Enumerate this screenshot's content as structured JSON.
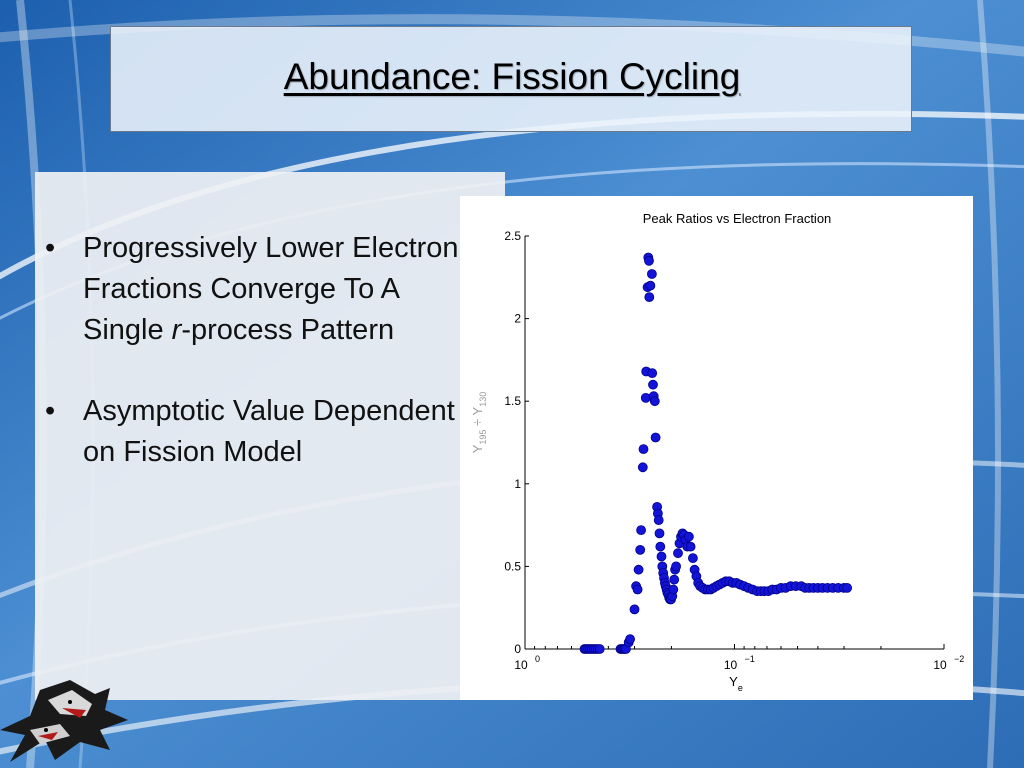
{
  "slide": {
    "title": "Abundance:  Fission Cycling",
    "bullets": [
      {
        "parts": [
          "Progressively Lower Electron Fractions Converge To A Single ",
          "r",
          "-process Pattern"
        ]
      },
      {
        "parts": [
          "Asymptotic Value Dependent on Fission Model",
          "",
          ""
        ]
      }
    ],
    "bullet_symbol": "•"
  },
  "colors": {
    "marker_fill": "#1414d8",
    "marker_stroke": "#00008a",
    "axis": "#000000",
    "ylabel_color": "#9a9a9a"
  },
  "icons": {
    "logo": "wolf-mascot-icon"
  },
  "chart_data": {
    "type": "scatter",
    "title": "Peak Ratios vs Electron Fraction",
    "xlabel_main": "Y",
    "xlabel_sub": "e",
    "ylabel_parts": [
      "Y",
      "195",
      " ÷ Y",
      "130"
    ],
    "xscale": "log",
    "xaxis_reversed": true,
    "xlim": [
      1,
      0.01
    ],
    "ylim": [
      0,
      2.5
    ],
    "yticks": [
      0,
      0.5,
      1,
      1.5,
      2,
      2.5
    ],
    "ytick_labels": [
      "0",
      "0.5",
      "1",
      "1.5",
      "2",
      "2.5"
    ],
    "xticks": [
      1,
      0.1,
      0.01
    ],
    "xtick_base": "10",
    "xtick_exps": [
      "0",
      "−1",
      "−2"
    ],
    "grid": false,
    "legend": "none",
    "points": [
      {
        "x": 0.52,
        "y": 0.0
      },
      {
        "x": 0.51,
        "y": 0.0
      },
      {
        "x": 0.5,
        "y": 0.0
      },
      {
        "x": 0.49,
        "y": 0.0
      },
      {
        "x": 0.48,
        "y": 0.0
      },
      {
        "x": 0.47,
        "y": 0.0
      },
      {
        "x": 0.46,
        "y": 0.0
      },
      {
        "x": 0.45,
        "y": 0.0
      },
      {
        "x": 0.44,
        "y": 0.0
      },
      {
        "x": 0.35,
        "y": 0.0
      },
      {
        "x": 0.345,
        "y": 0.0
      },
      {
        "x": 0.34,
        "y": 0.0
      },
      {
        "x": 0.335,
        "y": 0.0
      },
      {
        "x": 0.33,
        "y": 0.0
      },
      {
        "x": 0.32,
        "y": 0.04
      },
      {
        "x": 0.315,
        "y": 0.06
      },
      {
        "x": 0.3,
        "y": 0.24
      },
      {
        "x": 0.295,
        "y": 0.38
      },
      {
        "x": 0.29,
        "y": 0.36
      },
      {
        "x": 0.287,
        "y": 0.48
      },
      {
        "x": 0.282,
        "y": 0.6
      },
      {
        "x": 0.279,
        "y": 0.72
      },
      {
        "x": 0.274,
        "y": 1.1
      },
      {
        "x": 0.272,
        "y": 1.21
      },
      {
        "x": 0.265,
        "y": 1.52
      },
      {
        "x": 0.264,
        "y": 1.68
      },
      {
        "x": 0.26,
        "y": 2.19
      },
      {
        "x": 0.258,
        "y": 2.37
      },
      {
        "x": 0.256,
        "y": 2.35
      },
      {
        "x": 0.255,
        "y": 2.13
      },
      {
        "x": 0.252,
        "y": 2.2
      },
      {
        "x": 0.248,
        "y": 2.27
      },
      {
        "x": 0.247,
        "y": 1.67
      },
      {
        "x": 0.245,
        "y": 1.6
      },
      {
        "x": 0.243,
        "y": 1.53
      },
      {
        "x": 0.24,
        "y": 1.5
      },
      {
        "x": 0.238,
        "y": 1.28
      },
      {
        "x": 0.234,
        "y": 0.86
      },
      {
        "x": 0.232,
        "y": 0.82
      },
      {
        "x": 0.23,
        "y": 0.78
      },
      {
        "x": 0.228,
        "y": 0.7
      },
      {
        "x": 0.226,
        "y": 0.62
      },
      {
        "x": 0.223,
        "y": 0.56
      },
      {
        "x": 0.221,
        "y": 0.5
      },
      {
        "x": 0.219,
        "y": 0.46
      },
      {
        "x": 0.217,
        "y": 0.43
      },
      {
        "x": 0.215,
        "y": 0.4
      },
      {
        "x": 0.213,
        "y": 0.38
      },
      {
        "x": 0.211,
        "y": 0.36
      },
      {
        "x": 0.209,
        "y": 0.34
      },
      {
        "x": 0.207,
        "y": 0.33
      },
      {
        "x": 0.205,
        "y": 0.31
      },
      {
        "x": 0.203,
        "y": 0.3
      },
      {
        "x": 0.201,
        "y": 0.3
      },
      {
        "x": 0.198,
        "y": 0.32
      },
      {
        "x": 0.196,
        "y": 0.36
      },
      {
        "x": 0.194,
        "y": 0.42
      },
      {
        "x": 0.192,
        "y": 0.48
      },
      {
        "x": 0.19,
        "y": 0.5
      },
      {
        "x": 0.186,
        "y": 0.58
      },
      {
        "x": 0.183,
        "y": 0.64
      },
      {
        "x": 0.18,
        "y": 0.68
      },
      {
        "x": 0.177,
        "y": 0.7
      },
      {
        "x": 0.174,
        "y": 0.69
      },
      {
        "x": 0.171,
        "y": 0.66
      },
      {
        "x": 0.168,
        "y": 0.62
      },
      {
        "x": 0.165,
        "y": 0.68
      },
      {
        "x": 0.162,
        "y": 0.62
      },
      {
        "x": 0.158,
        "y": 0.55
      },
      {
        "x": 0.155,
        "y": 0.48
      },
      {
        "x": 0.152,
        "y": 0.44
      },
      {
        "x": 0.149,
        "y": 0.4
      },
      {
        "x": 0.146,
        "y": 0.38
      },
      {
        "x": 0.142,
        "y": 0.37
      },
      {
        "x": 0.138,
        "y": 0.36
      },
      {
        "x": 0.134,
        "y": 0.36
      },
      {
        "x": 0.13,
        "y": 0.36
      },
      {
        "x": 0.126,
        "y": 0.37
      },
      {
        "x": 0.122,
        "y": 0.38
      },
      {
        "x": 0.118,
        "y": 0.39
      },
      {
        "x": 0.114,
        "y": 0.4
      },
      {
        "x": 0.11,
        "y": 0.41
      },
      {
        "x": 0.106,
        "y": 0.41
      },
      {
        "x": 0.102,
        "y": 0.4
      },
      {
        "x": 0.098,
        "y": 0.4
      },
      {
        "x": 0.094,
        "y": 0.39
      },
      {
        "x": 0.09,
        "y": 0.38
      },
      {
        "x": 0.086,
        "y": 0.37
      },
      {
        "x": 0.082,
        "y": 0.36
      },
      {
        "x": 0.078,
        "y": 0.35
      },
      {
        "x": 0.075,
        "y": 0.35
      },
      {
        "x": 0.072,
        "y": 0.35
      },
      {
        "x": 0.069,
        "y": 0.35
      },
      {
        "x": 0.066,
        "y": 0.36
      },
      {
        "x": 0.063,
        "y": 0.36
      },
      {
        "x": 0.06,
        "y": 0.37
      },
      {
        "x": 0.057,
        "y": 0.37
      },
      {
        "x": 0.054,
        "y": 0.38
      },
      {
        "x": 0.051,
        "y": 0.38
      },
      {
        "x": 0.048,
        "y": 0.38
      },
      {
        "x": 0.046,
        "y": 0.37
      },
      {
        "x": 0.044,
        "y": 0.37
      },
      {
        "x": 0.042,
        "y": 0.37
      },
      {
        "x": 0.04,
        "y": 0.37
      },
      {
        "x": 0.038,
        "y": 0.37
      },
      {
        "x": 0.036,
        "y": 0.37
      },
      {
        "x": 0.034,
        "y": 0.37
      },
      {
        "x": 0.032,
        "y": 0.37
      },
      {
        "x": 0.03,
        "y": 0.37
      },
      {
        "x": 0.029,
        "y": 0.37
      }
    ]
  }
}
